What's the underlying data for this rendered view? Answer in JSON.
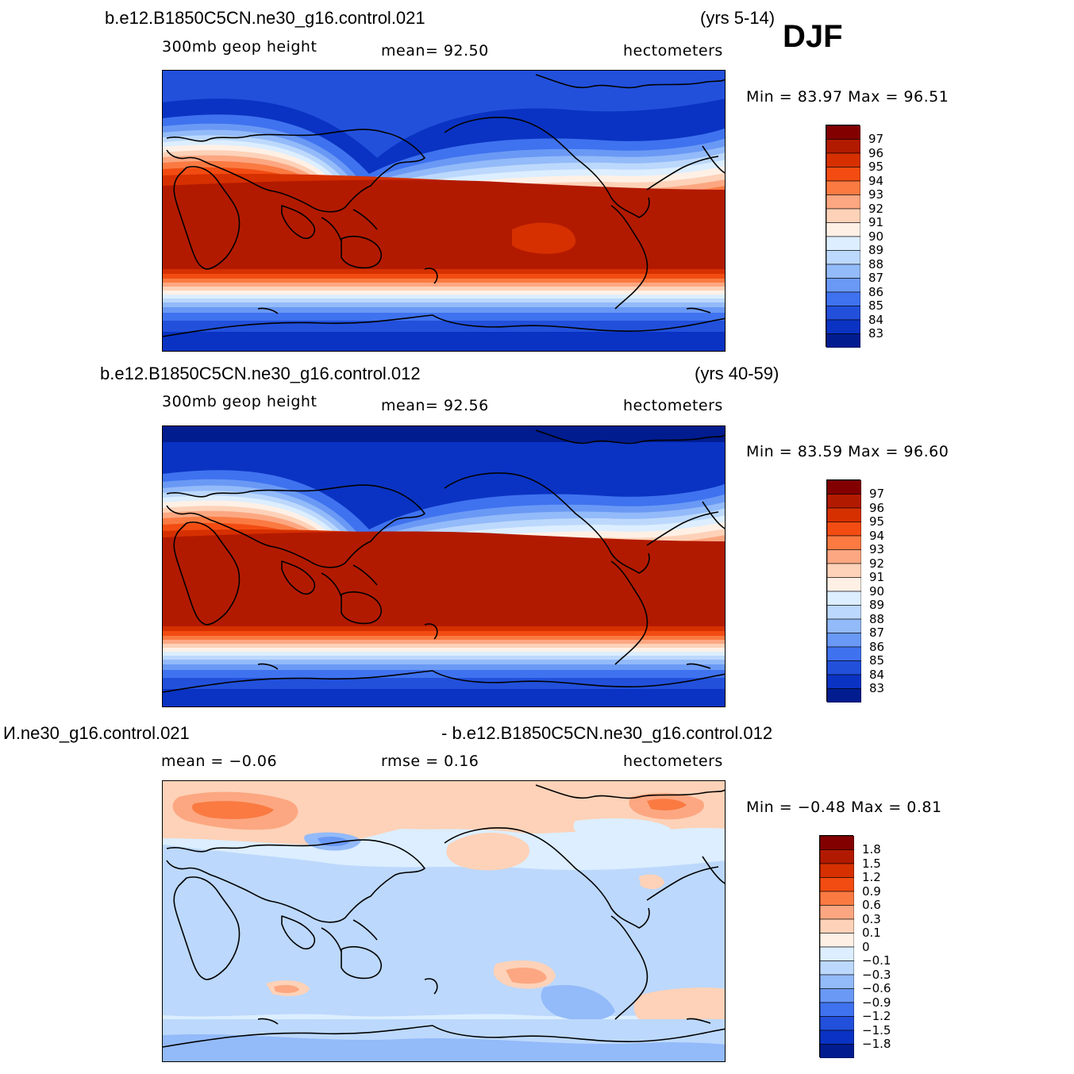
{
  "season": "DJF",
  "panels": [
    {
      "case": "b.e12.B1850C5CN.ne30_g16.control.021",
      "years": "(yrs 5-14)",
      "variable": "300mb  geop  height",
      "stat1": "mean=   92.50",
      "units": "hectometers",
      "minmax": "Min =   83.97  Max =    96.51",
      "colorbar_labels": [
        "97",
        "96",
        "95",
        "94",
        "93",
        "92",
        "91",
        "90",
        "89",
        "88",
        "87",
        "86",
        "85",
        "84",
        "83"
      ]
    },
    {
      "case": "b.e12.B1850C5CN.ne30_g16.control.012",
      "years": "(yrs 40-59)",
      "variable": "300mb  geop  height",
      "stat1": "mean=   92.56",
      "units": "hectometers",
      "minmax": "Min =   83.59  Max =    96.60",
      "colorbar_labels": [
        "97",
        "96",
        "95",
        "94",
        "93",
        "92",
        "91",
        "90",
        "89",
        "88",
        "87",
        "86",
        "85",
        "84",
        "83"
      ]
    },
    {
      "case_left": "И.ne30_g16.control.021",
      "case_right": "- b.e12.B1850C5CN.ne30_g16.control.012",
      "stat1": "mean =   −0.06",
      "stat2": "rmse =    0.16",
      "units": "hectometers",
      "minmax": "Min =   −0.48  Max =     0.81",
      "colorbar_labels": [
        "1.8",
        "1.5",
        "1.2",
        "0.9",
        "0.6",
        "0.3",
        "0.1",
        "0",
        "−0.1",
        "−0.3",
        "−0.6",
        "−0.9",
        "−1.2",
        "−1.5",
        "−1.8"
      ]
    }
  ],
  "colors": {
    "field_scale": [
      "#830000",
      "#b21a00",
      "#d63000",
      "#f24c12",
      "#fa7a42",
      "#fca781",
      "#fdd2b8",
      "#fff0e6",
      "#dceeff",
      "#bcd8fc",
      "#93baf9",
      "#6a99f5",
      "#3f72ef",
      "#2250db",
      "#0a33c3",
      "#001c8f"
    ],
    "diff_scale": [
      "#830000",
      "#b21a00",
      "#d63000",
      "#f24c12",
      "#fa7a42",
      "#fca781",
      "#fdd2b8",
      "#fff0e6",
      "#dceeff",
      "#bcd8fc",
      "#93baf9",
      "#6a99f5",
      "#3f72ef",
      "#2250db",
      "#0a33c3",
      "#001c8f"
    ]
  }
}
